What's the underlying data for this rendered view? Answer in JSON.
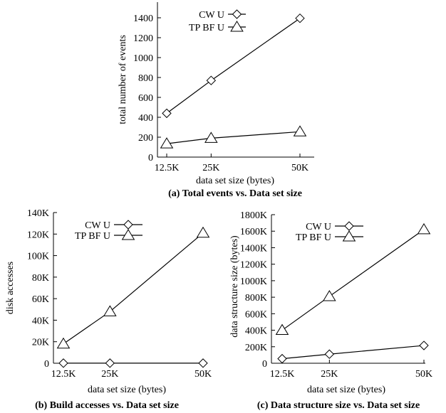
{
  "chart_data": [
    {
      "type": "line",
      "caption": "(a) Total events vs. Data set size",
      "xlabel": "data set size (bytes)",
      "ylabel": "total number of events",
      "x": [
        12.5,
        25,
        50
      ],
      "xticks": [
        "12.5K",
        "25K",
        "50K"
      ],
      "xlim": [
        12.5,
        50
      ],
      "ylim": [
        0,
        1400
      ],
      "yticks": [
        "0",
        "200",
        "400",
        "600",
        "800",
        "1000",
        "1200",
        "1400"
      ],
      "legend_position": "top-left",
      "series": [
        {
          "name": "CW U",
          "marker": "diamond",
          "values": [
            440,
            770,
            1395
          ]
        },
        {
          "name": "TP BF U",
          "marker": "triangle",
          "values": [
            135,
            190,
            255
          ]
        }
      ]
    },
    {
      "type": "line",
      "caption": "(b) Build accesses vs. Data set size",
      "xlabel": "data set size (bytes)",
      "ylabel": "disk accesses",
      "x": [
        12.5,
        25,
        50
      ],
      "xticks": [
        "12.5K",
        "25K",
        "50K"
      ],
      "xlim": [
        12.5,
        50
      ],
      "ylim": [
        0,
        140000
      ],
      "yticks": [
        "0",
        "20K",
        "40K",
        "60K",
        "80K",
        "100K",
        "120K",
        "140K"
      ],
      "legend_position": "top-left",
      "series": [
        {
          "name": "CW U",
          "marker": "diamond",
          "values": [
            100,
            100,
            100
          ]
        },
        {
          "name": "TP BF U",
          "marker": "triangle",
          "values": [
            18000,
            48000,
            121000
          ]
        }
      ]
    },
    {
      "type": "line",
      "caption": "(c) Data structure size vs. Data set size",
      "xlabel": "data set size (bytes)",
      "ylabel": "data structure size (bytes)",
      "x": [
        12.5,
        25,
        50
      ],
      "xticks": [
        "12.5K",
        "25K",
        "50K"
      ],
      "xlim": [
        12.5,
        50
      ],
      "ylim": [
        0,
        1800000
      ],
      "yticks": [
        "0",
        "200K",
        "400K",
        "600K",
        "800K",
        "1000K",
        "1200K",
        "1400K",
        "1600K",
        "1800K"
      ],
      "legend_position": "top-left",
      "series": [
        {
          "name": "CW U",
          "marker": "diamond",
          "values": [
            55000,
            110000,
            215000
          ]
        },
        {
          "name": "TP BF U",
          "marker": "triangle",
          "values": [
            400000,
            810000,
            1620000
          ]
        }
      ]
    }
  ]
}
